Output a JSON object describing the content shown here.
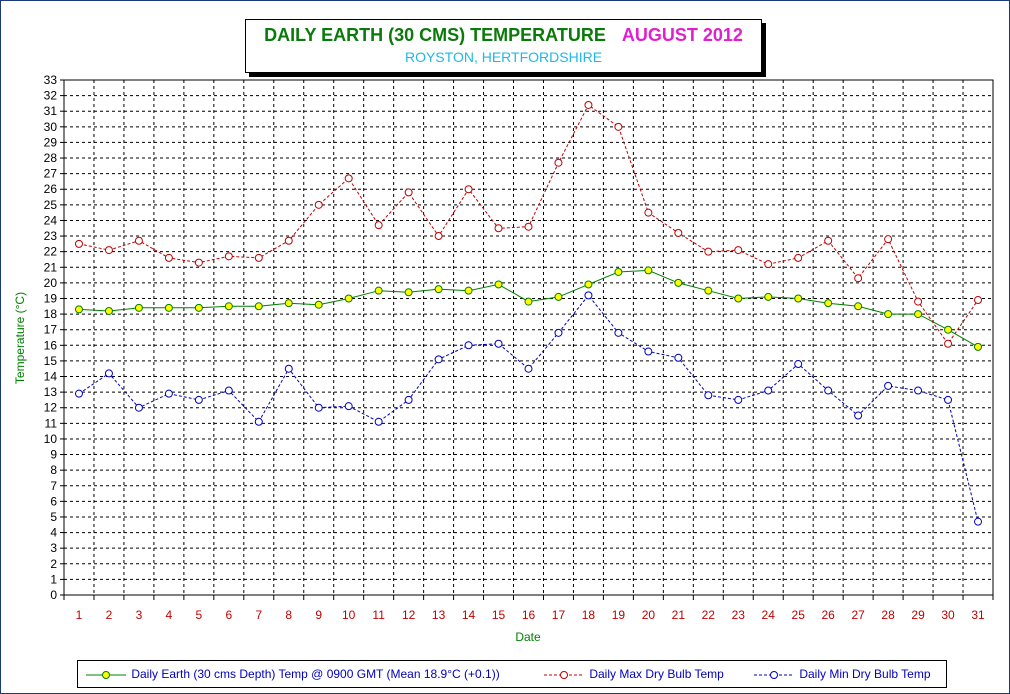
{
  "colors": {
    "earth": "#008000",
    "earth_fill": "#ffff00",
    "max": "#c00000",
    "min": "#0000c0",
    "title": "#0a7a0a",
    "month": "#e020d0",
    "subtitle": "#20b8e8",
    "axis_label": "#008000",
    "legend_earth_text": "#0000c0",
    "legend_max_text": "#0000c0",
    "legend_min_text": "#0000c0"
  },
  "chart_data": {
    "type": "line",
    "title": "DAILY EARTH (30 CMS) TEMPERATURE",
    "title_month": "AUGUST 2012",
    "subtitle": "ROYSTON, HERTFORDSHIRE",
    "xlabel": "Date",
    "ylabel": "Temperature (°C)",
    "ylim": [
      0,
      33
    ],
    "grid": true,
    "legend_position": "bottom",
    "x": [
      1,
      2,
      3,
      4,
      5,
      6,
      7,
      8,
      9,
      10,
      11,
      12,
      13,
      14,
      15,
      16,
      17,
      18,
      19,
      20,
      21,
      22,
      23,
      24,
      25,
      26,
      27,
      28,
      29,
      30,
      31
    ],
    "series": [
      {
        "name": "Daily Earth (30 cms Depth) Temp @ 0900 GMT (Mean 18.9°C (+0.1))",
        "style": "solid",
        "values": [
          18.3,
          18.2,
          18.4,
          18.4,
          18.4,
          18.5,
          18.5,
          18.7,
          18.6,
          19.0,
          19.5,
          19.4,
          19.6,
          19.5,
          19.9,
          18.8,
          19.1,
          19.9,
          20.7,
          20.8,
          20.0,
          19.5,
          19.0,
          19.1,
          19.0,
          18.7,
          18.5,
          18.0,
          18.0,
          17.0,
          15.9
        ]
      },
      {
        "name": "Daily Max Dry Bulb Temp",
        "style": "dashed",
        "values": [
          22.5,
          22.1,
          22.7,
          21.6,
          21.3,
          21.7,
          21.6,
          22.7,
          25.0,
          26.7,
          23.7,
          25.8,
          23.0,
          26.0,
          23.5,
          23.6,
          27.7,
          31.4,
          30.0,
          24.5,
          23.2,
          22.0,
          22.1,
          21.2,
          21.6,
          22.7,
          20.3,
          22.8,
          18.8,
          16.1,
          18.9
        ]
      },
      {
        "name": "Daily Min Dry Bulb Temp",
        "style": "dashed",
        "values": [
          12.9,
          14.2,
          12.0,
          12.9,
          12.5,
          13.1,
          11.1,
          14.5,
          12.0,
          12.1,
          11.1,
          12.5,
          15.1,
          16.0,
          16.1,
          14.5,
          16.8,
          19.2,
          16.8,
          15.6,
          15.2,
          12.8,
          12.5,
          13.1,
          14.8,
          13.1,
          11.5,
          13.4,
          13.1,
          12.5,
          4.7
        ]
      }
    ]
  }
}
